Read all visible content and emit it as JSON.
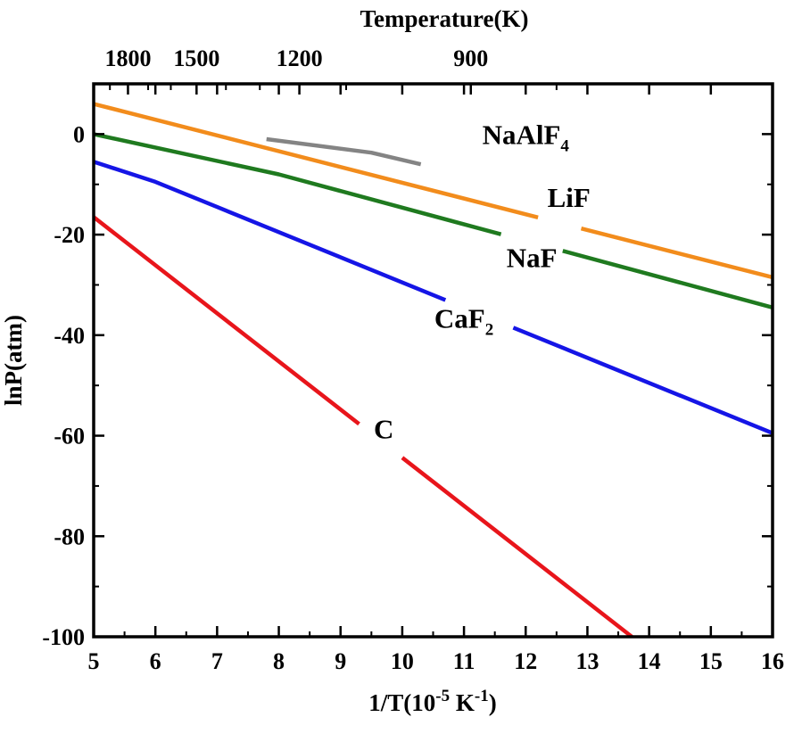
{
  "chart_data": {
    "type": "line",
    "title": "",
    "xlabel": {
      "base": "1/T(10",
      "sup": "-5",
      "mid": " K",
      "sup2": "-1",
      "end": ")"
    },
    "ylabel": "lnP(atm)",
    "top_xlabel": "Temperature(K)",
    "xlim": [
      5,
      16
    ],
    "ylim": [
      -100,
      10
    ],
    "x_ticks": [
      5,
      6,
      7,
      8,
      9,
      10,
      11,
      12,
      13,
      14,
      15,
      16
    ],
    "x_tick_labels": [
      "5",
      "6",
      "7",
      "8",
      "9",
      "10",
      "11",
      "12",
      "13",
      "14",
      "15",
      "16"
    ],
    "y_ticks": [
      0,
      -20,
      -40,
      -60,
      -80,
      -100
    ],
    "y_tick_labels": [
      "0",
      "-20",
      "-40",
      "-60",
      "-80",
      "-100"
    ],
    "top_ticks": [
      {
        "x": 5.556,
        "label": "1800"
      },
      {
        "x": 6.667,
        "label": "1500"
      },
      {
        "x": 8.333,
        "label": "1200"
      },
      {
        "x": 11.111,
        "label": "900"
      }
    ],
    "grid": false,
    "series": [
      {
        "name": "LiF",
        "color": "#f28c1c",
        "label": {
          "text": "LiF",
          "sub": "",
          "at": [
            12.7,
            -14.5
          ]
        },
        "gap": [
          12.2,
          12.9
        ],
        "x": [
          5,
          16
        ],
        "y": [
          6,
          -28.5
        ]
      },
      {
        "name": "NaF",
        "color": "#1f7a1f",
        "label": {
          "text": "NaF",
          "sub": "",
          "at": [
            12.1,
            -26.5
          ]
        },
        "gap": [
          11.6,
          12.6
        ],
        "x": [
          5,
          8,
          16
        ],
        "y": [
          0,
          -8,
          -34.5
        ]
      },
      {
        "name": "CaF",
        "color": "#1515e6",
        "label": {
          "text": "CaF",
          "sub": "2",
          "at": [
            11.0,
            -38.5
          ]
        },
        "gap": [
          10.7,
          11.8
        ],
        "x": [
          5,
          6,
          7,
          16
        ],
        "y": [
          -5.5,
          -9.5,
          -14.5,
          -59.5
        ]
      },
      {
        "name": "C",
        "color": "#e8151b",
        "label": {
          "text": "C",
          "sub": "",
          "at": [
            9.7,
            -60.5
          ]
        },
        "gap": [
          9.3,
          10.0
        ],
        "x": [
          5,
          13.72
        ],
        "y": [
          -16.5,
          -100
        ]
      },
      {
        "name": "NaAlF",
        "color": "#848484",
        "label": {
          "text": "NaAlF",
          "sub": "4",
          "at": [
            12.0,
            -2.0
          ]
        },
        "gap": null,
        "x": [
          7.8,
          9.5,
          10.3
        ],
        "y": [
          -1,
          -3.7,
          -6
        ]
      }
    ]
  }
}
